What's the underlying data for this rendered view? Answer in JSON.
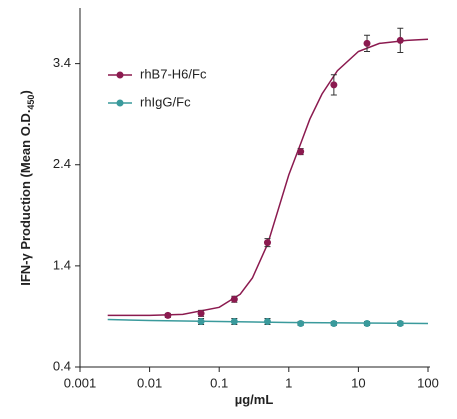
{
  "chart_data": {
    "type": "scatter",
    "xlabel": "µg/mL",
    "ylabel": "IFN-γ Production (Mean O.D.",
    "ylabel_sub": "450",
    "ylabel_end": ")",
    "xscale": "log",
    "xlim": [
      0.001,
      100
    ],
    "xticks": [
      0.001,
      0.01,
      0.1,
      1,
      10,
      100
    ],
    "ylim": [
      0.4,
      3.95
    ],
    "yticks": [
      0.4,
      1.4,
      2.4,
      3.4
    ],
    "legend": "upper left",
    "series": [
      {
        "name": "rhB7-H6/Fc",
        "color": "#8b1a4f",
        "x": [
          0.0183,
          0.0549,
          0.165,
          0.494,
          1.48,
          4.44,
          13.3,
          40
        ],
        "values": [
          0.91,
          0.93,
          1.07,
          1.63,
          2.53,
          3.19,
          3.6,
          3.63
        ],
        "errors": [
          0.02,
          0.03,
          0.03,
          0.04,
          0.03,
          0.1,
          0.08,
          0.12
        ],
        "fit_x": [
          0.0025,
          0.01,
          0.03,
          0.1,
          0.2,
          0.3,
          0.5,
          0.7,
          1,
          1.5,
          2,
          3,
          5,
          10,
          20,
          50,
          100
        ],
        "fit_values": [
          0.91,
          0.91,
          0.92,
          0.99,
          1.12,
          1.28,
          1.62,
          1.95,
          2.3,
          2.62,
          2.85,
          3.1,
          3.33,
          3.52,
          3.6,
          3.63,
          3.64
        ]
      },
      {
        "name": "rhIgG/Fc",
        "color": "#3a9a9c",
        "x": [
          0.0549,
          0.165,
          0.494,
          1.48,
          4.44,
          13.3,
          40
        ],
        "values": [
          0.85,
          0.85,
          0.85,
          0.83,
          0.83,
          0.83,
          0.83
        ],
        "errors": [
          0.03,
          0.03,
          0.03,
          0.02,
          0.02,
          0.02,
          0.02
        ],
        "fit_x": [
          0.0025,
          0.01,
          0.1,
          1,
          10,
          100
        ],
        "fit_values": [
          0.87,
          0.86,
          0.85,
          0.84,
          0.835,
          0.83
        ]
      }
    ]
  }
}
